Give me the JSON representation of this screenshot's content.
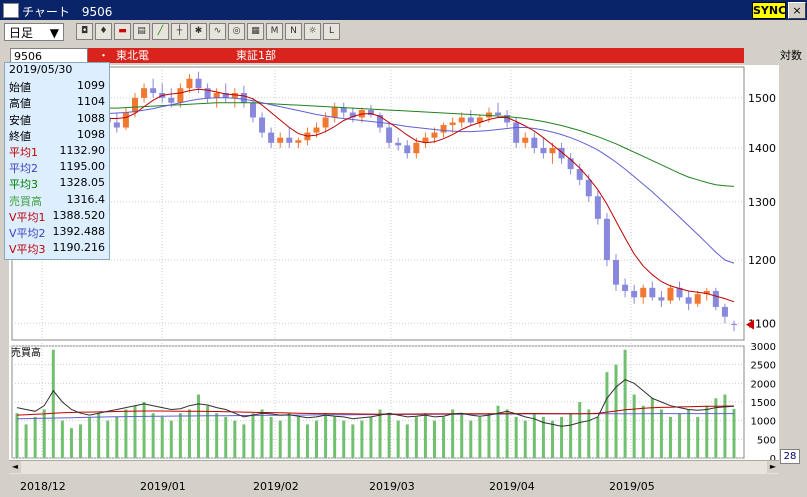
{
  "window": {
    "title": "チャート　9506",
    "sync_label": "SYNC",
    "close_label": "×"
  },
  "toolbar": {
    "period": "日足",
    "period_arrow": "▼"
  },
  "info": {
    "code": "9506",
    "dot": "・",
    "name": "東北電",
    "market": "東証1部",
    "scale": "対数"
  },
  "tooltip": {
    "date": "2019/05/30",
    "rows": [
      {
        "label": "始値",
        "value": "1099",
        "color": "#000000"
      },
      {
        "label": "高値",
        "value": "1104",
        "color": "#000000"
      },
      {
        "label": "安値",
        "value": "1088",
        "color": "#000000"
      },
      {
        "label": "終値",
        "value": "1098",
        "color": "#000000"
      },
      {
        "label": "平均1",
        "value": "1132.90",
        "color": "#c00000"
      },
      {
        "label": "平均2",
        "value": "1195.00",
        "color": "#4040c0"
      },
      {
        "label": "平均3",
        "value": "1328.05",
        "color": "#008000"
      },
      {
        "label": "売買高",
        "value": "1316.4",
        "color": "#40a040"
      },
      {
        "label": "V平均1",
        "value": "1388.520",
        "color": "#c00000"
      },
      {
        "label": "V平均2",
        "value": "1392.488",
        "color": "#4040c0"
      },
      {
        "label": "V平均3",
        "value": "1190.216",
        "color": "#c00000"
      }
    ]
  },
  "volume_panel_label": "売買高",
  "zoom": "28",
  "chart_data": {
    "type": "candlestick",
    "price_axis": {
      "ticks": [
        "1500",
        "1400",
        "1300",
        "1200",
        "1100"
      ],
      "scale": "log"
    },
    "volume_axis": {
      "ticks": [
        "3000",
        "2500",
        "2000",
        "1500",
        "1000",
        "500",
        "0"
      ]
    },
    "x_ticks": [
      "2018/12",
      "2019/01",
      "2019/02",
      "2019/03",
      "2019/04",
      "2019/05"
    ],
    "colors": {
      "up": "#f07830",
      "down": "#8888dd",
      "ma1": "#c00000",
      "ma2": "#6060d0",
      "ma3": "#208020",
      "volume": "#70c070"
    },
    "candles": [
      [
        1440,
        1470,
        1425,
        1460
      ],
      [
        1460,
        1480,
        1440,
        1450
      ],
      [
        1450,
        1470,
        1430,
        1440
      ],
      [
        1440,
        1500,
        1435,
        1490
      ],
      [
        1490,
        1520,
        1470,
        1480
      ],
      [
        1480,
        1500,
        1440,
        1450
      ],
      [
        1450,
        1460,
        1400,
        1410
      ],
      [
        1410,
        1430,
        1390,
        1420
      ],
      [
        1420,
        1460,
        1410,
        1450
      ],
      [
        1450,
        1470,
        1440,
        1460
      ],
      [
        1460,
        1480,
        1440,
        1450
      ],
      [
        1450,
        1470,
        1430,
        1440
      ],
      [
        1440,
        1480,
        1435,
        1470
      ],
      [
        1470,
        1510,
        1460,
        1500
      ],
      [
        1500,
        1530,
        1490,
        1520
      ],
      [
        1520,
        1540,
        1500,
        1510
      ],
      [
        1510,
        1530,
        1490,
        1500
      ],
      [
        1500,
        1520,
        1480,
        1490
      ],
      [
        1490,
        1530,
        1480,
        1520
      ],
      [
        1520,
        1550,
        1510,
        1540
      ],
      [
        1540,
        1555,
        1510,
        1520
      ],
      [
        1520,
        1530,
        1490,
        1500
      ],
      [
        1500,
        1520,
        1480,
        1510
      ],
      [
        1510,
        1530,
        1490,
        1500
      ],
      [
        1500,
        1520,
        1480,
        1510
      ],
      [
        1510,
        1525,
        1480,
        1490
      ],
      [
        1490,
        1500,
        1450,
        1460
      ],
      [
        1460,
        1470,
        1420,
        1430
      ],
      [
        1430,
        1440,
        1400,
        1410
      ],
      [
        1410,
        1430,
        1400,
        1420
      ],
      [
        1420,
        1440,
        1400,
        1410
      ],
      [
        1410,
        1420,
        1400,
        1415
      ],
      [
        1415,
        1440,
        1405,
        1430
      ],
      [
        1430,
        1450,
        1420,
        1440
      ],
      [
        1440,
        1470,
        1430,
        1460
      ],
      [
        1460,
        1490,
        1450,
        1480
      ],
      [
        1480,
        1490,
        1460,
        1470
      ],
      [
        1470,
        1480,
        1450,
        1460
      ],
      [
        1460,
        1480,
        1450,
        1475
      ],
      [
        1475,
        1485,
        1460,
        1465
      ],
      [
        1465,
        1470,
        1430,
        1440
      ],
      [
        1440,
        1450,
        1400,
        1410
      ],
      [
        1410,
        1420,
        1395,
        1405
      ],
      [
        1405,
        1415,
        1380,
        1390
      ],
      [
        1390,
        1420,
        1380,
        1410
      ],
      [
        1410,
        1430,
        1400,
        1420
      ],
      [
        1420,
        1440,
        1410,
        1430
      ],
      [
        1430,
        1450,
        1420,
        1445
      ],
      [
        1445,
        1460,
        1430,
        1450
      ],
      [
        1450,
        1470,
        1440,
        1460
      ],
      [
        1460,
        1475,
        1445,
        1450
      ],
      [
        1450,
        1465,
        1440,
        1460
      ],
      [
        1460,
        1480,
        1450,
        1470
      ],
      [
        1470,
        1490,
        1460,
        1465
      ],
      [
        1465,
        1475,
        1440,
        1450
      ],
      [
        1450,
        1460,
        1400,
        1410
      ],
      [
        1410,
        1430,
        1400,
        1420
      ],
      [
        1420,
        1430,
        1390,
        1400
      ],
      [
        1400,
        1420,
        1380,
        1390
      ],
      [
        1390,
        1410,
        1370,
        1400
      ],
      [
        1400,
        1410,
        1370,
        1380
      ],
      [
        1380,
        1390,
        1350,
        1360
      ],
      [
        1360,
        1370,
        1330,
        1340
      ],
      [
        1340,
        1350,
        1300,
        1310
      ],
      [
        1310,
        1320,
        1260,
        1270
      ],
      [
        1270,
        1280,
        1190,
        1200
      ],
      [
        1200,
        1210,
        1150,
        1160
      ],
      [
        1160,
        1170,
        1140,
        1150
      ],
      [
        1150,
        1160,
        1130,
        1140
      ],
      [
        1140,
        1160,
        1130,
        1155
      ],
      [
        1155,
        1165,
        1135,
        1140
      ],
      [
        1140,
        1150,
        1125,
        1135
      ],
      [
        1135,
        1160,
        1130,
        1155
      ],
      [
        1155,
        1165,
        1135,
        1140
      ],
      [
        1140,
        1150,
        1120,
        1130
      ],
      [
        1130,
        1150,
        1125,
        1145
      ],
      [
        1145,
        1155,
        1135,
        1150
      ],
      [
        1150,
        1155,
        1120,
        1125
      ],
      [
        1125,
        1130,
        1100,
        1110
      ],
      [
        1099,
        1104,
        1088,
        1098
      ]
    ],
    "ma1": [
      1450,
      1455,
      1458,
      1460,
      1465,
      1466,
      1462,
      1455,
      1452,
      1455,
      1458,
      1458,
      1460,
      1468,
      1482,
      1495,
      1505,
      1508,
      1510,
      1515,
      1518,
      1516,
      1512,
      1508,
      1506,
      1504,
      1498,
      1485,
      1470,
      1455,
      1440,
      1428,
      1423,
      1425,
      1432,
      1442,
      1454,
      1462,
      1467,
      1468,
      1462,
      1450,
      1438,
      1425,
      1414,
      1410,
      1412,
      1418,
      1426,
      1436,
      1444,
      1450,
      1456,
      1460,
      1460,
      1452,
      1443,
      1433,
      1420,
      1406,
      1392,
      1378,
      1362,
      1343,
      1322,
      1296,
      1266,
      1237,
      1210,
      1190,
      1176,
      1165,
      1158,
      1154,
      1150,
      1148,
      1146,
      1142,
      1138,
      1133
    ],
    "ma2": [
      1470,
      1470,
      1469,
      1469,
      1469,
      1470,
      1470,
      1469,
      1468,
      1468,
      1468,
      1469,
      1470,
      1472,
      1475,
      1478,
      1482,
      1486,
      1490,
      1494,
      1497,
      1499,
      1500,
      1500,
      1499,
      1497,
      1494,
      1490,
      1486,
      1482,
      1478,
      1474,
      1470,
      1466,
      1463,
      1460,
      1458,
      1456,
      1454,
      1452,
      1450,
      1448,
      1445,
      1442,
      1440,
      1438,
      1436,
      1434,
      1433,
      1432,
      1432,
      1433,
      1434,
      1436,
      1438,
      1440,
      1440,
      1438,
      1435,
      1431,
      1426,
      1420,
      1413,
      1405,
      1396,
      1385,
      1373,
      1360,
      1346,
      1332,
      1318,
      1303,
      1288,
      1273,
      1258,
      1243,
      1228,
      1213,
      1200,
      1195
    ],
    "ma3": [
      1475,
      1476,
      1476,
      1477,
      1477,
      1478,
      1478,
      1478,
      1478,
      1478,
      1479,
      1479,
      1480,
      1481,
      1482,
      1483,
      1484,
      1485,
      1486,
      1487,
      1488,
      1489,
      1490,
      1490,
      1490,
      1490,
      1490,
      1489,
      1488,
      1487,
      1486,
      1485,
      1484,
      1483,
      1482,
      1481,
      1480,
      1479,
      1478,
      1477,
      1476,
      1475,
      1474,
      1473,
      1472,
      1471,
      1470,
      1469,
      1468,
      1467,
      1466,
      1465,
      1464,
      1463,
      1462,
      1460,
      1458,
      1455,
      1452,
      1448,
      1444,
      1439,
      1434,
      1428,
      1422,
      1415,
      1408,
      1400,
      1392,
      1384,
      1376,
      1368,
      1360,
      1352,
      1345,
      1340,
      1335,
      1331,
      1329,
      1328
    ],
    "volume": [
      1200,
      900,
      1100,
      1300,
      2900,
      1000,
      800,
      900,
      1100,
      1200,
      1000,
      1100,
      1300,
      1400,
      1500,
      1200,
      1100,
      1000,
      1200,
      1300,
      1700,
      1400,
      1200,
      1100,
      1000,
      900,
      1200,
      1300,
      1100,
      1000,
      1200,
      1100,
      900,
      1000,
      1200,
      1100,
      1000,
      900,
      1000,
      1100,
      1300,
      1200,
      1000,
      900,
      1100,
      1200,
      1000,
      1100,
      1300,
      1200,
      1000,
      1100,
      1200,
      1400,
      1300,
      1100,
      1000,
      1200,
      1100,
      1000,
      1100,
      1200,
      1500,
      1300,
      1100,
      2300,
      2500,
      2900,
      1700,
      1400,
      1600,
      1300,
      1100,
      1200,
      1300,
      1100,
      1400,
      1600,
      1700,
      1316
    ],
    "vma1": [
      1350,
      1300,
      1250,
      1400,
      1800,
      1500,
      1300,
      1200,
      1150,
      1200,
      1250,
      1300,
      1350,
      1400,
      1450,
      1400,
      1350,
      1300,
      1320,
      1400,
      1450,
      1420,
      1350,
      1300,
      1200,
      1100,
      1150,
      1200,
      1180,
      1150,
      1160,
      1120,
      1080,
      1100,
      1150,
      1120,
      1100,
      1050,
      1080,
      1100,
      1150,
      1200,
      1150,
      1100,
      1120,
      1150,
      1100,
      1120,
      1180,
      1200,
      1150,
      1120,
      1150,
      1200,
      1250,
      1180,
      1100,
      1050,
      950,
      900,
      850,
      880,
      950,
      1000,
      1100,
      1600,
      1900,
      2100,
      2000,
      1800,
      1600,
      1500,
      1400,
      1350,
      1300,
      1280,
      1300,
      1350,
      1370,
      1388
    ],
    "vma2": [
      1150,
      1160,
      1170,
      1180,
      1200,
      1210,
      1220,
      1230,
      1230,
      1235,
      1240,
      1245,
      1250,
      1255,
      1260,
      1260,
      1258,
      1255,
      1252,
      1250,
      1250,
      1248,
      1245,
      1240,
      1235,
      1230,
      1225,
      1220,
      1215,
      1210,
      1205,
      1200,
      1195,
      1190,
      1188,
      1185,
      1183,
      1180,
      1178,
      1175,
      1175,
      1176,
      1177,
      1178,
      1179,
      1180,
      1181,
      1182,
      1183,
      1184,
      1185,
      1186,
      1187,
      1188,
      1189,
      1190,
      1191,
      1192,
      1190,
      1188,
      1186,
      1185,
      1186,
      1190,
      1200,
      1230,
      1260,
      1290,
      1310,
      1330,
      1345,
      1355,
      1362,
      1368,
      1374,
      1380,
      1384,
      1388,
      1390,
      1392
    ],
    "vma3": [
      1050,
      1055,
      1060,
      1065,
      1070,
      1075,
      1080,
      1085,
      1090,
      1095,
      1100,
      1104,
      1108,
      1112,
      1115,
      1118,
      1120,
      1122,
      1124,
      1126,
      1128,
      1130,
      1132,
      1134,
      1136,
      1138,
      1140,
      1142,
      1144,
      1146,
      1148,
      1150,
      1152,
      1154,
      1156,
      1158,
      1160,
      1161,
      1162,
      1163,
      1164,
      1165,
      1166,
      1167,
      1168,
      1169,
      1170,
      1171,
      1172,
      1173,
      1174,
      1175,
      1176,
      1177,
      1178,
      1179,
      1180,
      1181,
      1182,
      1182,
      1183,
      1183,
      1184,
      1184,
      1185,
      1185,
      1186,
      1186,
      1187,
      1187,
      1188,
      1188,
      1189,
      1189,
      1189,
      1190,
      1190,
      1190,
      1190,
      1190
    ]
  }
}
